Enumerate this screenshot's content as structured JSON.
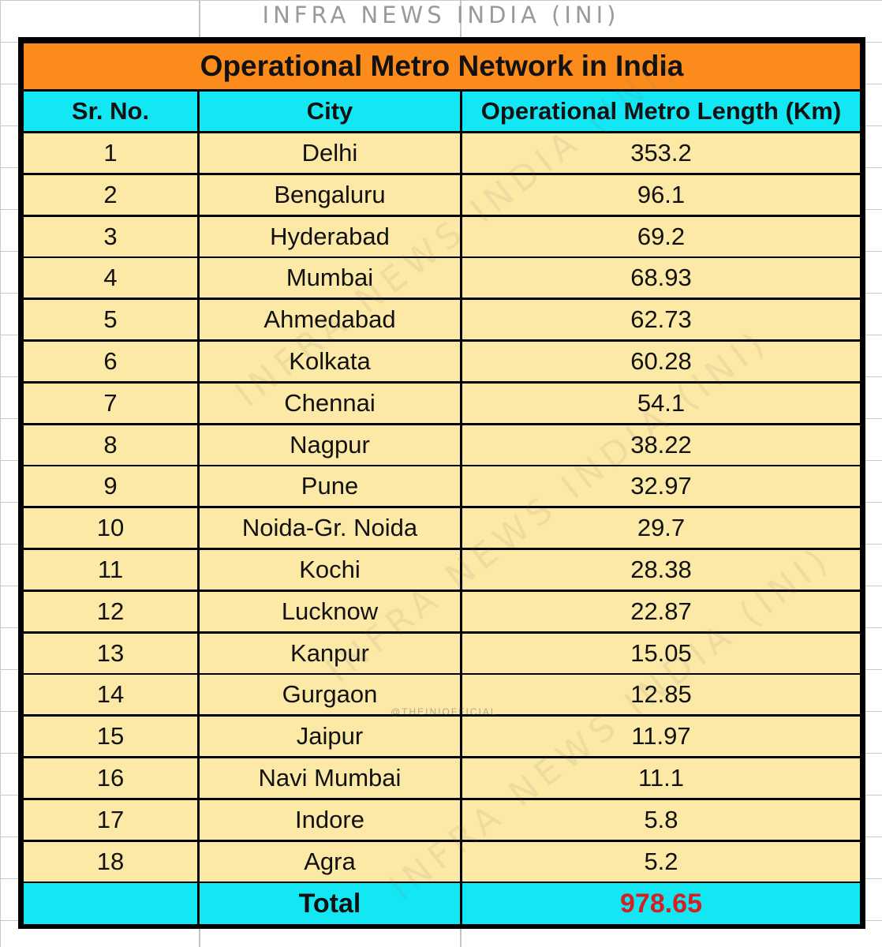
{
  "watermark": {
    "top_text": "INFRA NEWS INDIA (INI)",
    "diagonal_text": "INFRA NEWS INDIA (INI)",
    "handle": "@THEINIOFFICIAL"
  },
  "table": {
    "title": "Operational Metro Network in India",
    "headers": [
      "Sr. No.",
      "City",
      "Operational Metro Length (Km)"
    ],
    "rows": [
      {
        "sr": "1",
        "city": "Delhi",
        "length": "353.2"
      },
      {
        "sr": "2",
        "city": "Bengaluru",
        "length": "96.1"
      },
      {
        "sr": "3",
        "city": "Hyderabad",
        "length": "69.2"
      },
      {
        "sr": "4",
        "city": "Mumbai",
        "length": "68.93"
      },
      {
        "sr": "5",
        "city": "Ahmedabad",
        "length": "62.73"
      },
      {
        "sr": "6",
        "city": "Kolkata",
        "length": "60.28"
      },
      {
        "sr": "7",
        "city": "Chennai",
        "length": "54.1"
      },
      {
        "sr": "8",
        "city": "Nagpur",
        "length": "38.22"
      },
      {
        "sr": "9",
        "city": "Pune",
        "length": "32.97"
      },
      {
        "sr": "10",
        "city": "Noida-Gr. Noida",
        "length": "29.7"
      },
      {
        "sr": "11",
        "city": "Kochi",
        "length": "28.38"
      },
      {
        "sr": "12",
        "city": "Lucknow",
        "length": "22.87"
      },
      {
        "sr": "13",
        "city": "Kanpur",
        "length": "15.05"
      },
      {
        "sr": "14",
        "city": "Gurgaon",
        "length": "12.85"
      },
      {
        "sr": "15",
        "city": "Jaipur",
        "length": "11.97"
      },
      {
        "sr": "16",
        "city": "Navi Mumbai",
        "length": "11.1"
      },
      {
        "sr": "17",
        "city": "Indore",
        "length": "5.8"
      },
      {
        "sr": "18",
        "city": "Agra",
        "length": "5.2"
      }
    ],
    "total": {
      "sr": "",
      "label": "Total",
      "value": "978.65"
    }
  },
  "colors": {
    "title_bg": "#fb8c1c",
    "header_bg": "#13e7f4",
    "row_bg": "#fde9a6",
    "total_value": "#d32020"
  }
}
